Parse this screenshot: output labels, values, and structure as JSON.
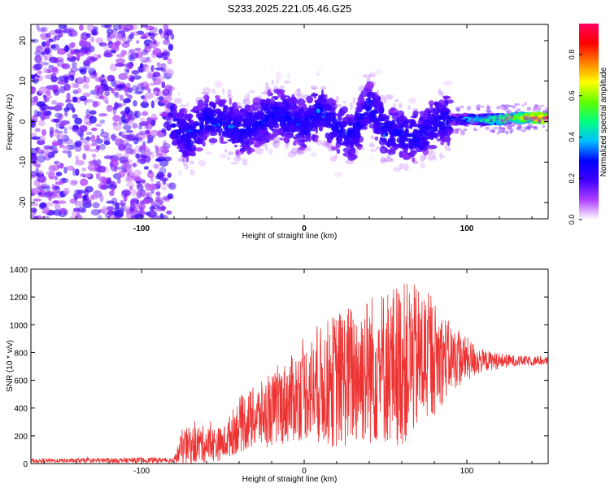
{
  "figure": {
    "title": "S233.2025.221.05.46.G25"
  },
  "chart_data": [
    {
      "type": "heatmap",
      "xlabel": "Height of straight line (km)",
      "ylabel": "Frequency (Hz)",
      "xlim": [
        -168,
        150
      ],
      "ylim": [
        -24,
        24
      ],
      "x_ticks": [
        -100,
        0,
        100
      ],
      "y_ticks": [
        -20,
        -10,
        0,
        10,
        20
      ],
      "colorbar": {
        "label": "Normalized spectral amplitude",
        "range": [
          0.0,
          0.95
        ],
        "ticks": [
          0.0,
          0.2,
          0.4,
          0.6,
          0.8
        ],
        "colors": [
          "#ffffff",
          "#b040ff",
          "#4000ff",
          "#0000ff",
          "#00c0ff",
          "#00ff80",
          "#60ff00",
          "#ffff00",
          "#ff8000",
          "#ff0000",
          "#ff0060"
        ]
      },
      "regions": [
        {
          "x_range": [
            -168,
            -81
          ],
          "freq_range": [
            -24,
            24
          ],
          "amplitude": 0.08,
          "description_level": "low"
        },
        {
          "x_range": [
            -81,
            90
          ],
          "freq_range": [
            -10,
            10
          ],
          "amplitude": 0.15,
          "description_level": "low-medium"
        },
        {
          "x_range": [
            90,
            150
          ],
          "freq_range": [
            -2,
            2
          ],
          "amplitude": 0.6,
          "description_level": "high"
        }
      ],
      "ridge": [
        {
          "x": -80,
          "f": -1
        },
        {
          "x": -70,
          "f": -4
        },
        {
          "x": -60,
          "f": 1
        },
        {
          "x": -50,
          "f": 0
        },
        {
          "x": -40,
          "f": -2
        },
        {
          "x": -30,
          "f": -1
        },
        {
          "x": -20,
          "f": 2
        },
        {
          "x": -10,
          "f": 1
        },
        {
          "x": 0,
          "f": -1
        },
        {
          "x": 10,
          "f": 3
        },
        {
          "x": 20,
          "f": -2
        },
        {
          "x": 30,
          "f": -3
        },
        {
          "x": 40,
          "f": 4
        },
        {
          "x": 50,
          "f": -2
        },
        {
          "x": 60,
          "f": -3
        },
        {
          "x": 70,
          "f": -4
        },
        {
          "x": 80,
          "f": 0
        },
        {
          "x": 90,
          "f": 0.5
        },
        {
          "x": 100,
          "f": 0.5
        },
        {
          "x": 110,
          "f": 0.5
        },
        {
          "x": 120,
          "f": 0.5
        },
        {
          "x": 130,
          "f": 1
        },
        {
          "x": 140,
          "f": 1
        },
        {
          "x": 150,
          "f": 1
        }
      ]
    },
    {
      "type": "line",
      "xlabel": "Height of straight line (km)",
      "ylabel": "SNR (10 * v/v)",
      "xlim": [
        -168,
        150
      ],
      "ylim": [
        0,
        1400
      ],
      "x_ticks": [
        -100,
        0,
        100
      ],
      "y_ticks": [
        0,
        200,
        400,
        600,
        800,
        1000,
        1200,
        1400
      ],
      "color": "#ee3333",
      "envelope": [
        {
          "x": -168,
          "mean": 20,
          "amp": 15
        },
        {
          "x": -80,
          "mean": 25,
          "amp": 20
        },
        {
          "x": -75,
          "mean": 120,
          "amp": 130
        },
        {
          "x": -65,
          "mean": 140,
          "amp": 140
        },
        {
          "x": -50,
          "mean": 140,
          "amp": 120
        },
        {
          "x": -40,
          "mean": 280,
          "amp": 200
        },
        {
          "x": -20,
          "mean": 380,
          "amp": 260
        },
        {
          "x": 0,
          "mean": 520,
          "amp": 350
        },
        {
          "x": 20,
          "mean": 600,
          "amp": 500
        },
        {
          "x": 40,
          "mean": 680,
          "amp": 550
        },
        {
          "x": 60,
          "mean": 720,
          "amp": 600
        },
        {
          "x": 75,
          "mean": 760,
          "amp": 500
        },
        {
          "x": 90,
          "mean": 760,
          "amp": 250
        },
        {
          "x": 110,
          "mean": 740,
          "amp": 80
        },
        {
          "x": 130,
          "mean": 740,
          "amp": 40
        },
        {
          "x": 150,
          "mean": 740,
          "amp": 30
        }
      ]
    }
  ]
}
